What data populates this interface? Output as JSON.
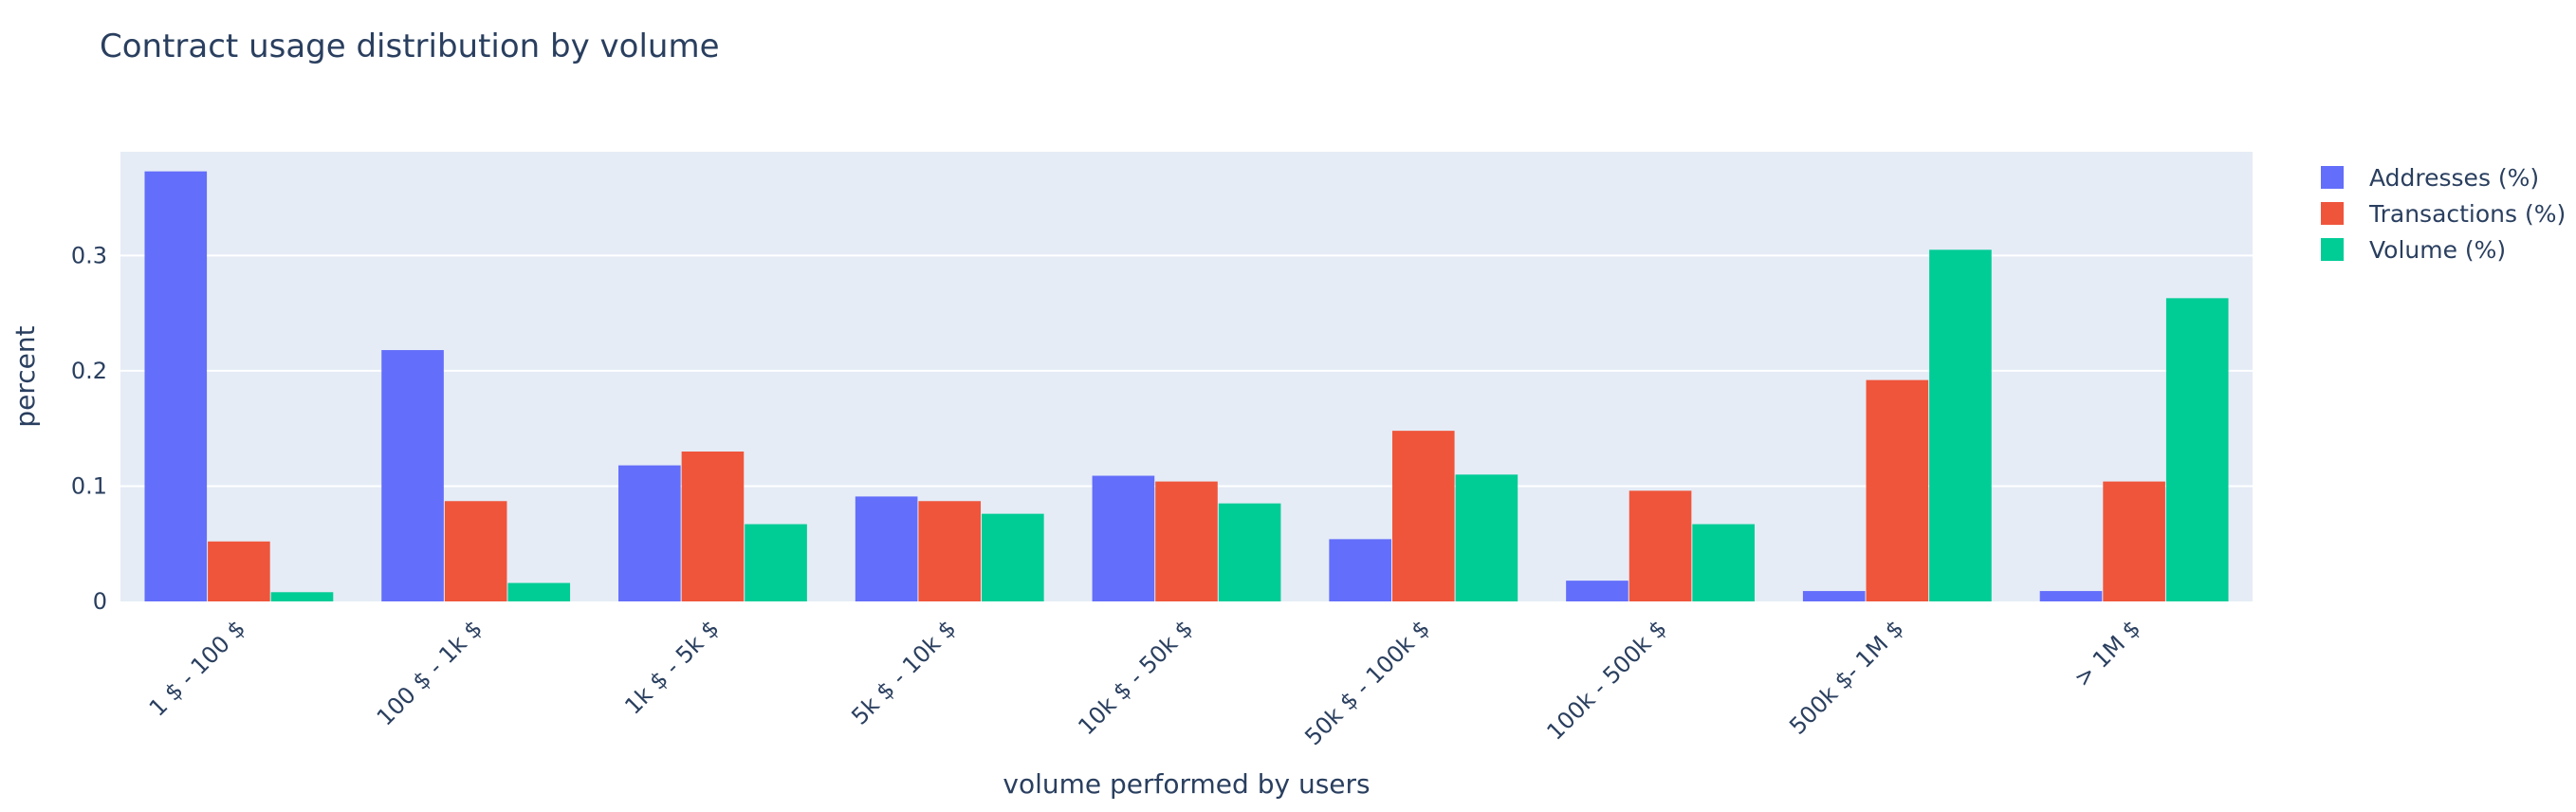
{
  "chart_data": {
    "type": "bar",
    "title": "Contract usage distribution by volume",
    "xlabel": "volume performed by users",
    "ylabel": "percent",
    "categories": [
      "1 $ - 100 $",
      "100 $ - 1k $",
      "1k $ - 5k $",
      "5k $ - 10k $",
      "10k $ - 50k $",
      "50k $ - 100k $",
      "100k - 500k $",
      "500k $- 1M $",
      "> 1M $"
    ],
    "series": [
      {
        "name": "Addresses (%)",
        "color": "#636efa",
        "values": [
          0.373,
          0.218,
          0.118,
          0.091,
          0.109,
          0.054,
          0.018,
          0.009,
          0.009
        ]
      },
      {
        "name": "Transactions (%)",
        "color": "#ef553b",
        "values": [
          0.052,
          0.087,
          0.13,
          0.087,
          0.104,
          0.148,
          0.096,
          0.192,
          0.104
        ]
      },
      {
        "name": "Volume (%)",
        "color": "#00cc96",
        "values": [
          0.008,
          0.016,
          0.067,
          0.076,
          0.085,
          0.11,
          0.067,
          0.305,
          0.263
        ]
      }
    ],
    "yticks": [
      0,
      0.1,
      0.2,
      0.3
    ],
    "ytick_labels": [
      "0",
      "0.1",
      "0.2",
      "0.3"
    ],
    "ylim": [
      0,
      0.39
    ],
    "grid": true,
    "legend_position": "top-right",
    "plot_background": "#e5ecf6"
  }
}
